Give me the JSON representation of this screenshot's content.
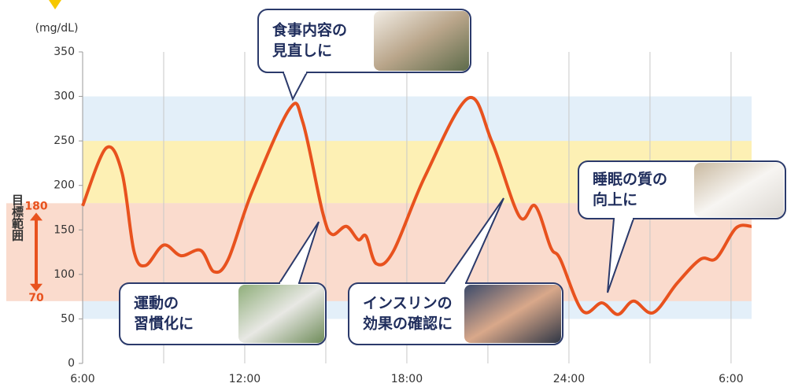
{
  "chart_data": {
    "type": "line",
    "y_unit": "(mg/dL)",
    "xlim": [
      6,
      30.76
    ],
    "ylim": [
      0,
      350
    ],
    "xticks": [
      {
        "value": 6,
        "label": "6:00"
      },
      {
        "value": 12,
        "label": "12:00"
      },
      {
        "value": 18,
        "label": "18:00"
      },
      {
        "value": 24,
        "label": "24:00"
      },
      {
        "value": 30,
        "label": "6:00"
      }
    ],
    "x_grid": [
      9,
      12,
      15,
      18,
      21,
      24,
      27,
      30
    ],
    "yticks": [
      0,
      50,
      100,
      150,
      200,
      250,
      300,
      350
    ],
    "bands": [
      {
        "from": 50,
        "to": 300,
        "color": "#e3eff9"
      },
      {
        "from": 180,
        "to": 250,
        "color": "#fdf0b4"
      },
      {
        "from": 70,
        "to": 180,
        "color": "#fadbcd"
      }
    ],
    "target_range": {
      "label": "目標範囲",
      "high": 180,
      "low": 70,
      "color": "#e8521e"
    },
    "series": [
      {
        "color": "#e8521e",
        "x": [
          6.0,
          6.87,
          7.46,
          7.9,
          8.33,
          9.0,
          9.64,
          10.37,
          10.86,
          11.39,
          12.26,
          13.66,
          14.15,
          14.88,
          15.23,
          15.76,
          16.2,
          16.49,
          16.87,
          17.5,
          18.67,
          20.27,
          21.15,
          22.17,
          22.75,
          23.33,
          23.68,
          24.5,
          25.22,
          25.81,
          26.39,
          27.12,
          28.0,
          28.87,
          29.45,
          30.18,
          30.76
        ],
        "values": [
          177,
          242,
          214,
          126,
          110,
          133,
          121,
          127,
          103,
          117,
          192,
          286,
          271,
          170,
          145,
          154,
          139,
          143,
          112,
          126,
          210,
          298,
          249,
          165,
          177,
          130,
          117,
          59,
          68,
          55,
          70,
          57,
          90,
          117,
          118,
          152,
          154
        ]
      }
    ],
    "callouts": [
      {
        "lines": [
          "食事内容の",
          "見直しに"
        ]
      },
      {
        "lines": [
          "運動の",
          "習慣化に"
        ]
      },
      {
        "lines": [
          "インスリンの",
          "効果の確認に"
        ]
      },
      {
        "lines": [
          "睡眠の質の",
          "向上に"
        ]
      }
    ]
  }
}
